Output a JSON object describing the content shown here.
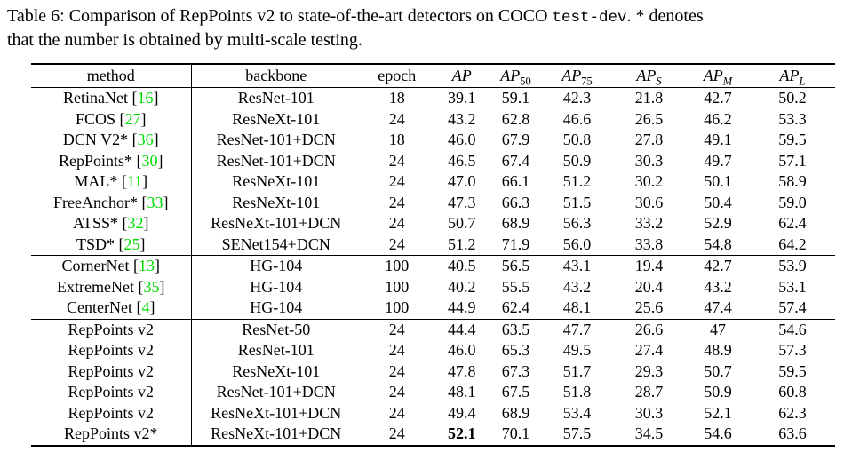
{
  "caption": {
    "line1_pre": "Table 6: Comparison of RepPoints v2 to state-of-the-art detectors on COCO ",
    "line1_code": "test-dev",
    "line1_post": ". * denotes",
    "line2": "that the number is obtained by multi-scale testing."
  },
  "colors": {
    "citation": "#00DF00",
    "text": "#000000",
    "background": "#ffffff"
  },
  "table": {
    "headers": [
      {
        "text": "method"
      },
      {
        "text": "backbone"
      },
      {
        "text": "epoch"
      },
      {
        "math": "AP",
        "sub": ""
      },
      {
        "math": "AP",
        "sub": "50"
      },
      {
        "math": "AP",
        "sub": "75"
      },
      {
        "math": "AP",
        "sub": "S"
      },
      {
        "math": "AP",
        "sub": "M"
      },
      {
        "math": "AP",
        "sub": "L"
      }
    ],
    "groups": [
      {
        "rows": [
          {
            "method": "RetinaNet",
            "cite": "16",
            "backbone": "ResNet-101",
            "epoch": "18",
            "values": [
              "39.1",
              "59.1",
              "42.3",
              "21.8",
              "42.7",
              "50.2"
            ]
          },
          {
            "method": "FCOS",
            "cite": "27",
            "backbone": "ResNeXt-101",
            "epoch": "24",
            "values": [
              "43.2",
              "62.8",
              "46.6",
              "26.5",
              "46.2",
              "53.3"
            ]
          },
          {
            "method": "DCN V2*",
            "cite": "36",
            "backbone": "ResNet-101+DCN",
            "epoch": "18",
            "values": [
              "46.0",
              "67.9",
              "50.8",
              "27.8",
              "49.1",
              "59.5"
            ]
          },
          {
            "method": "RepPoints*",
            "cite": "30",
            "backbone": "ResNet-101+DCN",
            "epoch": "24",
            "values": [
              "46.5",
              "67.4",
              "50.9",
              "30.3",
              "49.7",
              "57.1"
            ]
          },
          {
            "method": "MAL*",
            "cite": "11",
            "backbone": "ResNeXt-101",
            "epoch": "24",
            "values": [
              "47.0",
              "66.1",
              "51.2",
              "30.2",
              "50.1",
              "58.9"
            ]
          },
          {
            "method": "FreeAnchor*",
            "cite": "33",
            "backbone": "ResNeXt-101",
            "epoch": "24",
            "values": [
              "47.3",
              "66.3",
              "51.5",
              "30.6",
              "50.4",
              "59.0"
            ]
          },
          {
            "method": "ATSS*",
            "cite": "32",
            "backbone": "ResNeXt-101+DCN",
            "epoch": "24",
            "values": [
              "50.7",
              "68.9",
              "56.3",
              "33.2",
              "52.9",
              "62.4"
            ]
          },
          {
            "method": "TSD*",
            "cite": "25",
            "backbone": "SENet154+DCN",
            "epoch": "24",
            "values": [
              "51.2",
              "71.9",
              "56.0",
              "33.8",
              "54.8",
              "64.2"
            ]
          }
        ]
      },
      {
        "rows": [
          {
            "method": "CornerNet",
            "cite": "13",
            "backbone": "HG-104",
            "epoch": "100",
            "values": [
              "40.5",
              "56.5",
              "43.1",
              "19.4",
              "42.7",
              "53.9"
            ]
          },
          {
            "method": "ExtremeNet",
            "cite": "35",
            "backbone": "HG-104",
            "epoch": "100",
            "values": [
              "40.2",
              "55.5",
              "43.2",
              "20.4",
              "43.2",
              "53.1"
            ]
          },
          {
            "method": "CenterNet",
            "cite": "4",
            "backbone": "HG-104",
            "epoch": "100",
            "values": [
              "44.9",
              "62.4",
              "48.1",
              "25.6",
              "47.4",
              "57.4"
            ]
          }
        ]
      },
      {
        "rows": [
          {
            "method": "RepPoints v2",
            "backbone": "ResNet-50",
            "epoch": "24",
            "values": [
              "44.4",
              "63.5",
              "47.7",
              "26.6",
              "47",
              "54.6"
            ]
          },
          {
            "method": "RepPoints v2",
            "backbone": "ResNet-101",
            "epoch": "24",
            "values": [
              "46.0",
              "65.3",
              "49.5",
              "27.4",
              "48.9",
              "57.3"
            ]
          },
          {
            "method": "RepPoints v2",
            "backbone": "ResNeXt-101",
            "epoch": "24",
            "values": [
              "47.8",
              "67.3",
              "51.7",
              "29.3",
              "50.7",
              "59.5"
            ]
          },
          {
            "method": "RepPoints v2",
            "backbone": "ResNet-101+DCN",
            "epoch": "24",
            "values": [
              "48.1",
              "67.5",
              "51.8",
              "28.7",
              "50.9",
              "60.8"
            ]
          },
          {
            "method": "RepPoints v2",
            "backbone": "ResNeXt-101+DCN",
            "epoch": "24",
            "values": [
              "49.4",
              "68.9",
              "53.4",
              "30.3",
              "52.1",
              "62.3"
            ]
          },
          {
            "method": "RepPoints v2*",
            "backbone": "ResNeXt-101+DCN",
            "epoch": "24",
            "values": [
              "52.1",
              "70.1",
              "57.5",
              "34.5",
              "54.6",
              "63.6"
            ],
            "bold_values": [
              0
            ]
          }
        ]
      }
    ]
  }
}
